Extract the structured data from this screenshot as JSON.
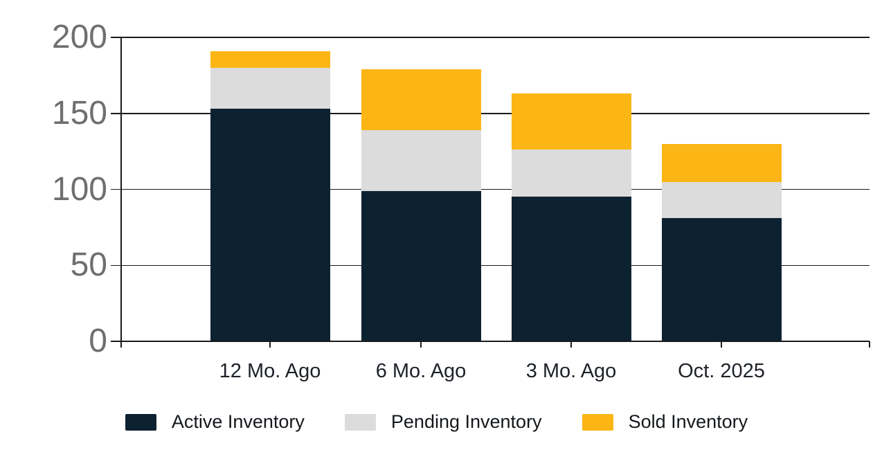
{
  "chart_data": {
    "type": "bar",
    "stacked": true,
    "title": "",
    "xlabel": "",
    "ylabel": "",
    "categories": [
      "12 Mo. Ago",
      "6 Mo. Ago",
      "3 Mo. Ago",
      "Oct. 2025"
    ],
    "series": [
      {
        "name": "Active Inventory",
        "color": "#0d2231",
        "values": [
          153,
          99,
          95,
          81
        ]
      },
      {
        "name": "Pending Inventory",
        "color": "#dcdcdc",
        "values": [
          27,
          40,
          31,
          24
        ]
      },
      {
        "name": "Sold Inventory",
        "color": "#fbb616",
        "values": [
          11,
          40,
          37,
          25
        ]
      }
    ],
    "stack_totals": [
      191,
      179,
      163,
      130
    ],
    "ylim": [
      0,
      200
    ],
    "yticks": [
      0,
      50,
      100,
      150,
      200
    ],
    "grid": true,
    "legend_position": "bottom"
  },
  "colors": {
    "background": "#ffffff",
    "axis": "#1a1a1a",
    "gridline": "#1a1a1a",
    "y_label_text": "#6f6f6f",
    "x_label_text": "#1d2228",
    "legend_text": "#14181c"
  }
}
